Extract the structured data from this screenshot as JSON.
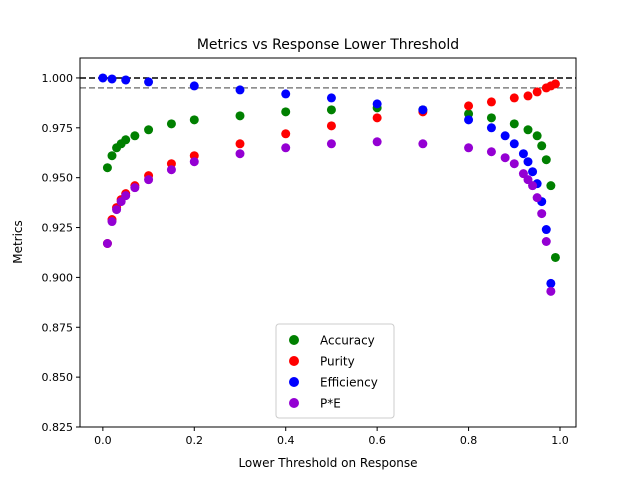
{
  "chart_data": {
    "type": "scatter",
    "title": "Metrics vs Response Lower Threshold",
    "xlabel": "Lower Threshold on Response",
    "ylabel": "Metrics",
    "xlim": [
      -0.05,
      1.035
    ],
    "ylim": [
      0.825,
      1.01
    ],
    "xticks": [
      0.0,
      0.2,
      0.4,
      0.6,
      0.8,
      1.0
    ],
    "xtick_labels": [
      "0.0",
      "0.2",
      "0.4",
      "0.6",
      "0.8",
      "1.0"
    ],
    "yticks": [
      0.825,
      0.85,
      0.875,
      0.9,
      0.925,
      0.95,
      0.975,
      1.0
    ],
    "ytick_labels": [
      "0.825",
      "0.850",
      "0.875",
      "0.900",
      "0.925",
      "0.950",
      "0.975",
      "1.000"
    ],
    "grid": false,
    "legend_position": "lower center",
    "reference_lines": [
      {
        "y": 1.0,
        "style": "dashed",
        "color": "#000000"
      },
      {
        "y": 0.995,
        "style": "dashed",
        "color": "#808080"
      }
    ],
    "series": [
      {
        "name": "Accuracy",
        "color": "#008000",
        "x": [
          0.01,
          0.02,
          0.03,
          0.04,
          0.05,
          0.07,
          0.1,
          0.15,
          0.2,
          0.3,
          0.4,
          0.5,
          0.6,
          0.7,
          0.8,
          0.85,
          0.9,
          0.93,
          0.95,
          0.96,
          0.97,
          0.98,
          0.99
        ],
        "values": [
          0.955,
          0.961,
          0.965,
          0.967,
          0.969,
          0.971,
          0.974,
          0.977,
          0.979,
          0.981,
          0.983,
          0.984,
          0.985,
          0.984,
          0.982,
          0.98,
          0.977,
          0.974,
          0.971,
          0.966,
          0.959,
          0.946,
          0.91
        ]
      },
      {
        "name": "Purity",
        "color": "#ff0000",
        "x": [
          0.01,
          0.02,
          0.03,
          0.04,
          0.05,
          0.07,
          0.1,
          0.15,
          0.2,
          0.3,
          0.4,
          0.5,
          0.6,
          0.7,
          0.8,
          0.85,
          0.9,
          0.93,
          0.95,
          0.97,
          0.98,
          0.99
        ],
        "values": [
          0.917,
          0.929,
          0.935,
          0.939,
          0.942,
          0.946,
          0.951,
          0.957,
          0.961,
          0.967,
          0.972,
          0.976,
          0.98,
          0.983,
          0.986,
          0.988,
          0.99,
          0.991,
          0.993,
          0.995,
          0.996,
          0.997
        ]
      },
      {
        "name": "Efficiency",
        "color": "#0000ff",
        "x": [
          0.0,
          0.02,
          0.05,
          0.1,
          0.2,
          0.3,
          0.4,
          0.5,
          0.6,
          0.7,
          0.8,
          0.85,
          0.88,
          0.9,
          0.92,
          0.93,
          0.94,
          0.95,
          0.96,
          0.97,
          0.98
        ],
        "values": [
          1.0,
          0.9995,
          0.999,
          0.998,
          0.996,
          0.994,
          0.992,
          0.99,
          0.987,
          0.984,
          0.979,
          0.975,
          0.971,
          0.967,
          0.962,
          0.958,
          0.953,
          0.947,
          0.938,
          0.924,
          0.897
        ]
      },
      {
        "name": "P*E",
        "color": "#9400d3",
        "x": [
          0.01,
          0.02,
          0.03,
          0.04,
          0.05,
          0.07,
          0.1,
          0.15,
          0.2,
          0.3,
          0.4,
          0.5,
          0.6,
          0.7,
          0.8,
          0.85,
          0.88,
          0.9,
          0.92,
          0.93,
          0.94,
          0.95,
          0.96,
          0.97,
          0.98
        ],
        "values": [
          0.917,
          0.928,
          0.934,
          0.938,
          0.941,
          0.945,
          0.949,
          0.954,
          0.958,
          0.962,
          0.965,
          0.967,
          0.968,
          0.967,
          0.965,
          0.963,
          0.96,
          0.957,
          0.952,
          0.949,
          0.946,
          0.94,
          0.932,
          0.918,
          0.893
        ]
      }
    ]
  }
}
